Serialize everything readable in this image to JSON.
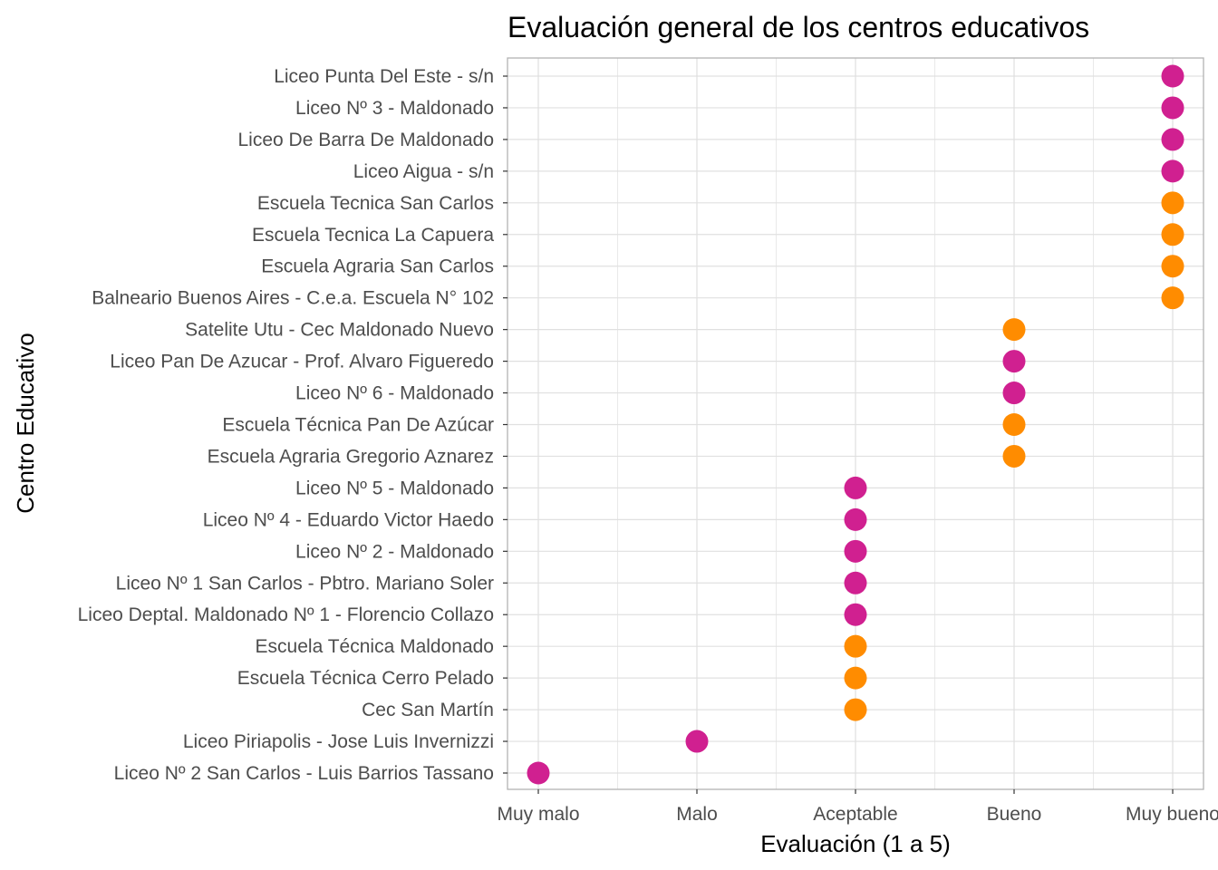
{
  "chart_data": {
    "type": "scatter",
    "title": "Evaluación general de los centros educativos",
    "xlabel": "Evaluación (1 a 5)",
    "ylabel": "Centro Educativo",
    "xlim": [
      1,
      5
    ],
    "x_tick_labels": [
      "Muy malo",
      "Malo",
      "Aceptable",
      "Bueno",
      "Muy bueno"
    ],
    "grid": true,
    "legend": "none",
    "colors": {
      "magenta": "#d02090",
      "orange": "#ff8c00"
    },
    "points": [
      {
        "center": "Liceo Punta Del Este - s/n",
        "value": 5,
        "color": "magenta"
      },
      {
        "center": "Liceo Nº 3 - Maldonado",
        "value": 5,
        "color": "magenta"
      },
      {
        "center": "Liceo De Barra De Maldonado",
        "value": 5,
        "color": "magenta"
      },
      {
        "center": "Liceo Aigua - s/n",
        "value": 5,
        "color": "magenta"
      },
      {
        "center": "Escuela Tecnica San Carlos",
        "value": 5,
        "color": "orange"
      },
      {
        "center": "Escuela Tecnica La Capuera",
        "value": 5,
        "color": "orange"
      },
      {
        "center": "Escuela Agraria San Carlos",
        "value": 5,
        "color": "orange"
      },
      {
        "center": "Balneario Buenos Aires - C.e.a. Escuela N° 102",
        "value": 5,
        "color": "orange"
      },
      {
        "center": "Satelite Utu - Cec Maldonado Nuevo",
        "value": 4,
        "color": "orange"
      },
      {
        "center": "Liceo Pan De Azucar - Prof. Alvaro Figueredo",
        "value": 4,
        "color": "magenta"
      },
      {
        "center": "Liceo Nº 6 - Maldonado",
        "value": 4,
        "color": "magenta"
      },
      {
        "center": "Escuela Técnica Pan De Azúcar",
        "value": 4,
        "color": "orange"
      },
      {
        "center": "Escuela Agraria Gregorio Aznarez",
        "value": 4,
        "color": "orange"
      },
      {
        "center": "Liceo Nº 5 - Maldonado",
        "value": 3,
        "color": "magenta"
      },
      {
        "center": "Liceo Nº 4 - Eduardo Victor Haedo",
        "value": 3,
        "color": "magenta"
      },
      {
        "center": "Liceo Nº 2 - Maldonado",
        "value": 3,
        "color": "magenta"
      },
      {
        "center": "Liceo Nº 1 San Carlos - Pbtro. Mariano Soler",
        "value": 3,
        "color": "magenta"
      },
      {
        "center": "Liceo Deptal. Maldonado Nº 1 - Florencio Collazo",
        "value": 3,
        "color": "magenta"
      },
      {
        "center": "Escuela Técnica Maldonado",
        "value": 3,
        "color": "orange"
      },
      {
        "center": "Escuela Técnica Cerro Pelado",
        "value": 3,
        "color": "orange"
      },
      {
        "center": "Cec San Martín",
        "value": 3,
        "color": "orange"
      },
      {
        "center": "Liceo Piriapolis - Jose Luis Invernizzi",
        "value": 2,
        "color": "magenta"
      },
      {
        "center": "Liceo Nº 2 San Carlos - Luis Barrios Tassano",
        "value": 1,
        "color": "magenta"
      }
    ]
  }
}
